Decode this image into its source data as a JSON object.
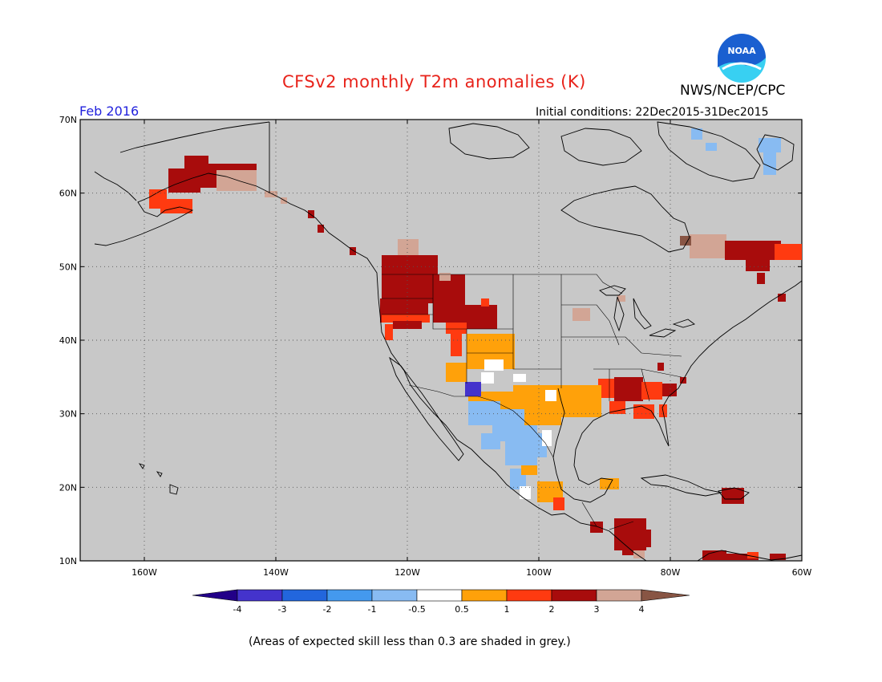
{
  "header": {
    "title": "CFSv2 monthly T2m anomalies (K)",
    "agency": "NWS/NCEP/CPC",
    "logo_text": "NOAA",
    "valid_month": "Feb 2016",
    "initial_conditions": "Initial conditions: 22Dec2015-31Dec2015"
  },
  "map": {
    "lat_labels": [
      "70N",
      "60N",
      "50N",
      "40N",
      "30N",
      "20N",
      "10N"
    ],
    "lon_labels": [
      "160W",
      "140W",
      "120W",
      "100W",
      "80W",
      "60W"
    ],
    "grid": true
  },
  "legend": {
    "ticks": [
      "-4",
      "-3",
      "-2",
      "-1",
      "-0.5",
      "0.5",
      "1",
      "2",
      "3",
      "4"
    ],
    "colors": [
      "#220088",
      "#4433cc",
      "#2266dd",
      "#4499ee",
      "#88bbf2",
      "#ffffff",
      "#ffa10a",
      "#ff3a10",
      "#a80c0c",
      "#d2a595",
      "#885544"
    ]
  },
  "footnote": "(Areas of expected skill less than 0.3 are shaded in grey.)",
  "colors": {
    "background_grey": "#c8c8c8",
    "title_red": "#e8231b",
    "date_blue": "#2222dd",
    "logo_blue": "#1a5fd0",
    "logo_cyan": "#38d0f2"
  }
}
